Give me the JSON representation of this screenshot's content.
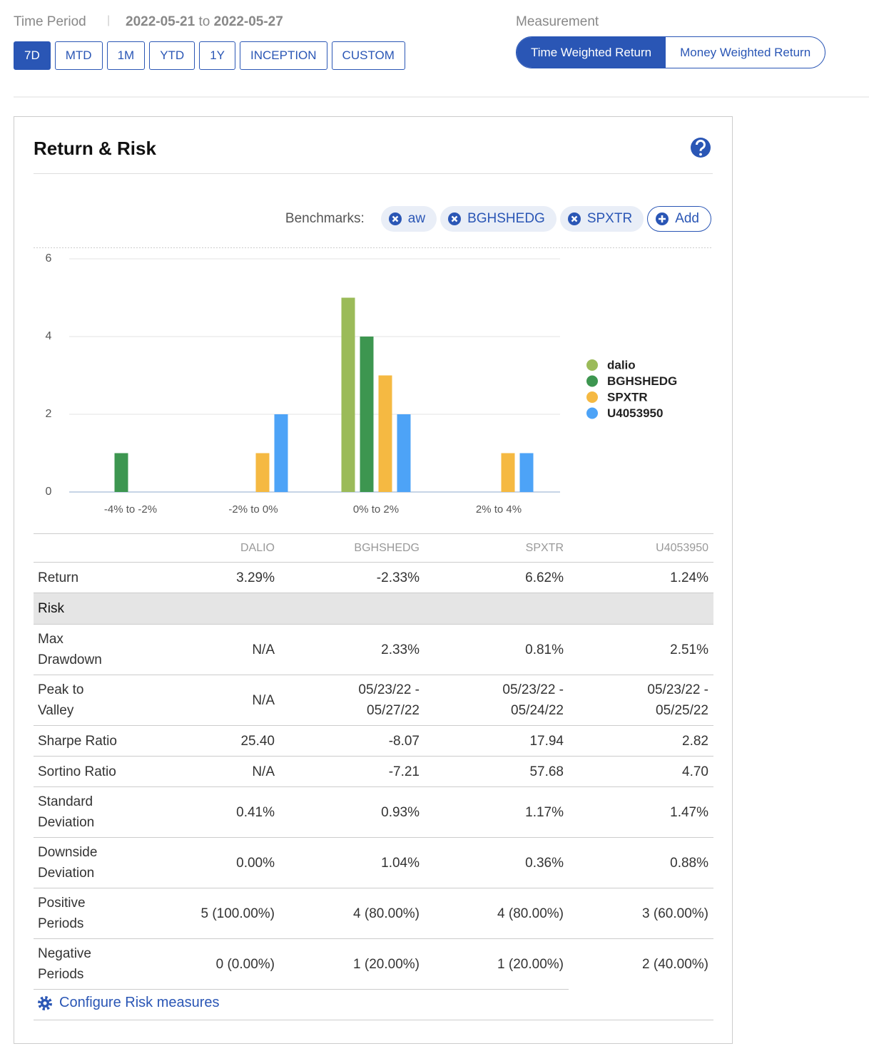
{
  "header": {
    "time_period_label": "Time Period",
    "date_start": "2022-05-21",
    "date_joiner": "to",
    "date_end": "2022-05-27",
    "periods": [
      {
        "label": "7D",
        "active": true
      },
      {
        "label": "MTD",
        "active": false
      },
      {
        "label": "1M",
        "active": false
      },
      {
        "label": "YTD",
        "active": false
      },
      {
        "label": "1Y",
        "active": false
      },
      {
        "label": "INCEPTION",
        "active": false
      },
      {
        "label": "CUSTOM",
        "active": false
      }
    ],
    "measurement_label": "Measurement",
    "measurements": [
      {
        "label": "Time Weighted Return",
        "active": true
      },
      {
        "label": "Money Weighted Return",
        "active": false
      }
    ]
  },
  "panel": {
    "title": "Return & Risk",
    "benchmarks_label": "Benchmarks:",
    "benchmarks": [
      "aw",
      "BGHSHEDG",
      "SPXTR"
    ],
    "add_label": "Add"
  },
  "chart_data": {
    "type": "bar",
    "categories": [
      "-4% to -2%",
      "-2% to 0%",
      "0% to 2%",
      "2% to 4%"
    ],
    "series": [
      {
        "name": "dalio",
        "color": "#9bbb59",
        "values": [
          0,
          0,
          5,
          0
        ]
      },
      {
        "name": "BGHSHEDG",
        "color": "#3d9650",
        "values": [
          1,
          0,
          4,
          0
        ]
      },
      {
        "name": "SPXTR",
        "color": "#f5b942",
        "values": [
          0,
          1,
          3,
          1
        ]
      },
      {
        "name": "U4053950",
        "color": "#4da3f7",
        "values": [
          0,
          2,
          2,
          1
        ]
      }
    ],
    "ylim": [
      0,
      6
    ],
    "yticks": [
      0,
      2,
      4,
      6
    ],
    "grid": true,
    "legend": "right"
  },
  "table": {
    "columns": [
      "DALIO",
      "BGHSHEDG",
      "SPXTR",
      "U4053950"
    ],
    "rows": [
      {
        "label": "Return",
        "values": [
          "3.29%",
          "-2.33%",
          "6.62%",
          "1.24%"
        ]
      },
      {
        "label": "Risk",
        "section": true
      },
      {
        "label": "Max Drawdown",
        "values": [
          "N/A",
          "2.33%",
          "0.81%",
          "2.51%"
        ]
      },
      {
        "label": "Peak to Valley",
        "values": [
          "N/A",
          "05/23/22 - 05/27/22",
          "05/23/22 - 05/24/22",
          "05/23/22 - 05/25/22"
        ]
      },
      {
        "label": "Sharpe Ratio",
        "values": [
          "25.40",
          "-8.07",
          "17.94",
          "2.82"
        ]
      },
      {
        "label": "Sortino Ratio",
        "values": [
          "N/A",
          "-7.21",
          "57.68",
          "4.70"
        ]
      },
      {
        "label": "Standard Deviation",
        "values": [
          "0.41%",
          "0.93%",
          "1.17%",
          "1.47%"
        ]
      },
      {
        "label": "Downside Deviation",
        "values": [
          "0.00%",
          "1.04%",
          "0.36%",
          "0.88%"
        ]
      },
      {
        "label": "Positive Periods",
        "values": [
          "5 (100.00%)",
          "4 (80.00%)",
          "4 (80.00%)",
          "3 (60.00%)"
        ]
      },
      {
        "label": "Negative Periods",
        "values": [
          "0 (0.00%)",
          "1 (20.00%)",
          "1 (20.00%)",
          "2 (40.00%)"
        ]
      }
    ],
    "configure_label": "Configure Risk measures"
  }
}
